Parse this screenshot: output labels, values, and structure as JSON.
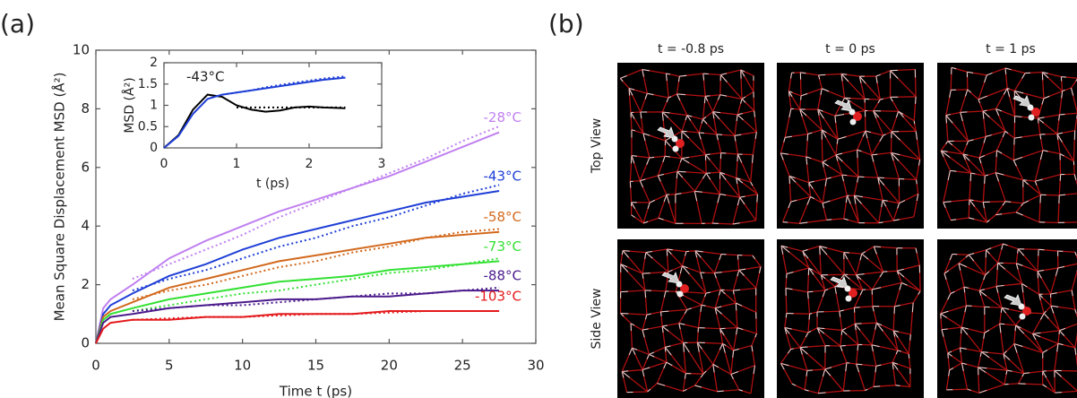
{
  "panel_labels": [
    "(a)",
    "(b)"
  ],
  "chart_data": [
    {
      "type": "line",
      "x_label": "Time t (ps)",
      "y_label": "Mean Square Displacement MSD (Å²)",
      "xlim": [
        0,
        30
      ],
      "ylim": [
        0,
        10
      ],
      "xticks": [
        0,
        5,
        10,
        15,
        20,
        25,
        30
      ],
      "yticks": [
        0,
        2,
        4,
        6,
        8,
        10
      ],
      "x": [
        0,
        0.5,
        1,
        2.5,
        5,
        7.5,
        10,
        12.5,
        15,
        17.5,
        20,
        22.5,
        25,
        27.5
      ],
      "series": [
        {
          "name": "-28°C",
          "color": "#c080f0",
          "values": [
            0,
            1.2,
            1.5,
            2.0,
            2.9,
            3.5,
            4.0,
            4.5,
            4.9,
            5.3,
            5.7,
            6.2,
            6.7,
            7.2
          ],
          "fit_values": [
            null,
            null,
            null,
            2.2,
            2.7,
            3.2,
            3.7,
            4.3,
            4.8,
            5.3,
            5.8,
            6.3,
            6.9,
            7.4
          ]
        },
        {
          "name": "-43°C",
          "color": "#1f3fd6",
          "values": [
            0,
            1.0,
            1.3,
            1.7,
            2.3,
            2.7,
            3.2,
            3.6,
            3.9,
            4.2,
            4.5,
            4.8,
            5.0,
            5.2
          ],
          "fit_values": [
            null,
            null,
            null,
            1.8,
            2.2,
            2.5,
            2.9,
            3.3,
            3.6,
            4.0,
            4.3,
            4.7,
            5.1,
            5.4
          ]
        },
        {
          "name": "-58°C",
          "color": "#d2691e",
          "values": [
            0,
            0.9,
            1.1,
            1.4,
            1.9,
            2.2,
            2.5,
            2.8,
            3.0,
            3.2,
            3.4,
            3.6,
            3.7,
            3.8
          ],
          "fit_values": [
            null,
            null,
            null,
            1.5,
            1.8,
            2.0,
            2.3,
            2.6,
            2.8,
            3.1,
            3.3,
            3.6,
            3.8,
            3.9
          ]
        },
        {
          "name": "-73°C",
          "color": "#33e033",
          "values": [
            0,
            0.8,
            1.0,
            1.2,
            1.5,
            1.7,
            1.9,
            2.1,
            2.2,
            2.3,
            2.5,
            2.6,
            2.7,
            2.8
          ],
          "fit_values": [
            null,
            null,
            null,
            1.1,
            1.3,
            1.5,
            1.7,
            1.8,
            2.0,
            2.2,
            2.4,
            2.5,
            2.7,
            2.9
          ]
        },
        {
          "name": "-88°C",
          "color": "#4b1b8c",
          "values": [
            0,
            0.7,
            0.9,
            1.0,
            1.2,
            1.3,
            1.4,
            1.5,
            1.5,
            1.6,
            1.6,
            1.7,
            1.8,
            1.8
          ],
          "fit_values": [
            null,
            null,
            null,
            1.1,
            1.2,
            1.3,
            1.3,
            1.4,
            1.5,
            1.6,
            1.7,
            1.7,
            1.8,
            1.9
          ]
        },
        {
          "name": "-103°C",
          "color": "#e41a1c",
          "values": [
            0,
            0.5,
            0.7,
            0.8,
            0.8,
            0.9,
            0.9,
            1.0,
            1.0,
            1.0,
            1.1,
            1.1,
            1.1,
            1.1
          ],
          "fit_values": [
            null,
            null,
            null,
            0.8,
            0.85,
            0.9,
            0.9,
            0.95,
            1.0,
            1.0,
            1.05,
            1.1,
            1.1,
            1.1
          ]
        }
      ]
    },
    {
      "type": "line",
      "annotation": "-43°C",
      "x_label": "t (ps)",
      "y_label": "MSD (Å²)",
      "xlim": [
        0,
        3
      ],
      "ylim": [
        0,
        2
      ],
      "xticks": [
        0,
        1,
        2,
        3
      ],
      "yticks": [
        0,
        0.5,
        1,
        1.5,
        2
      ],
      "x": [
        0,
        0.2,
        0.4,
        0.6,
        0.8,
        1.0,
        1.2,
        1.4,
        1.6,
        1.8,
        2.0,
        2.2,
        2.5
      ],
      "series": [
        {
          "color": "#000000",
          "values": [
            0,
            0.3,
            0.9,
            1.25,
            1.2,
            1.0,
            0.9,
            0.85,
            0.88,
            0.95,
            0.97,
            0.95,
            0.93
          ],
          "fit_values": [
            null,
            null,
            null,
            null,
            null,
            0.95,
            0.95,
            0.95,
            0.95,
            0.95,
            0.95,
            0.95,
            0.95
          ]
        },
        {
          "color": "#1f3fd6",
          "values": [
            0,
            0.28,
            0.8,
            1.15,
            1.25,
            1.3,
            1.35,
            1.4,
            1.45,
            1.5,
            1.55,
            1.6,
            1.65
          ],
          "fit_values": [
            null,
            null,
            null,
            null,
            1.25,
            1.3,
            1.35,
            1.42,
            1.48,
            1.53,
            1.58,
            1.63,
            1.68
          ]
        }
      ]
    }
  ],
  "snapshots": {
    "times": [
      "t = -0.8 ps",
      "t = 0 ps",
      "t = 1 ps"
    ],
    "views": [
      "Top View",
      "Side View"
    ]
  }
}
